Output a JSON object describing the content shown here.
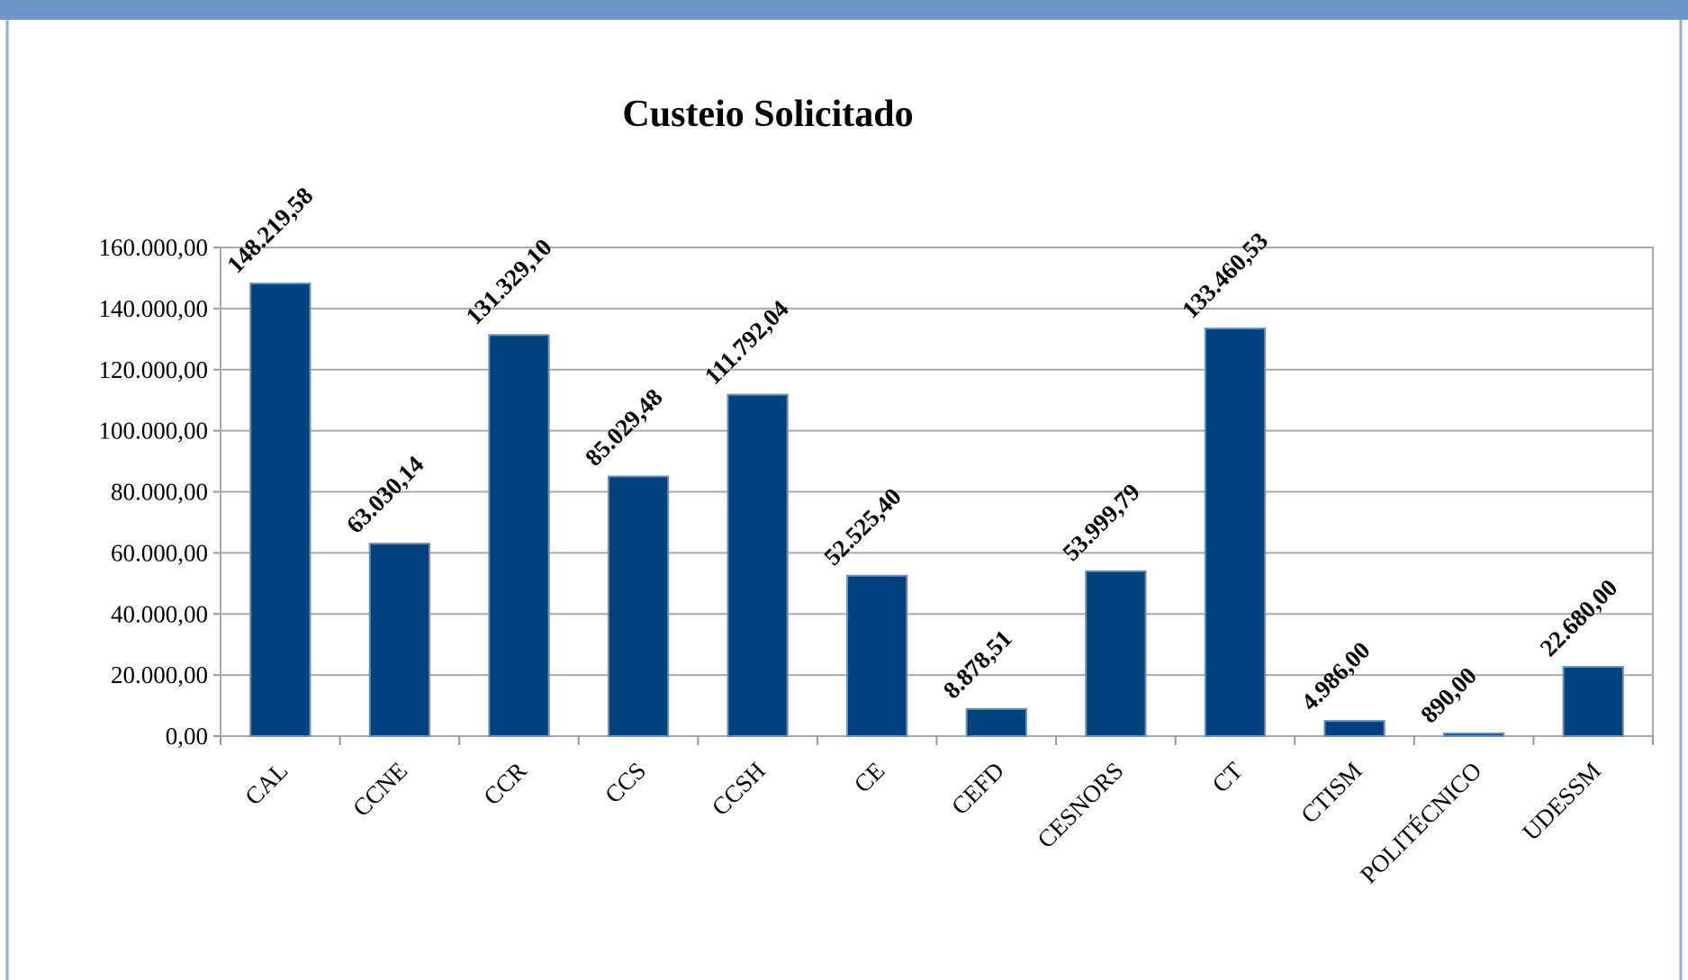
{
  "chart_data": {
    "type": "bar",
    "title": "Custeio Solicitado",
    "categories": [
      "CAL",
      "CCNE",
      "CCR",
      "CCS",
      "CCSH",
      "CE",
      "CEFD",
      "CESNORS",
      "CT",
      "CTISM",
      "POLITÉCNICO",
      "UDESSM"
    ],
    "values": [
      148219.58,
      63030.14,
      131329.1,
      85029.48,
      111792.04,
      52525.4,
      8878.51,
      53999.79,
      133460.53,
      4986.0,
      890.0,
      22680.0
    ],
    "value_labels": [
      "148.219,58",
      "63.030,14",
      "131.329,10",
      "85.029,48",
      "111.792,04",
      "52.525,40",
      "8.878,51",
      "53.999,79",
      "133.460,53",
      "4.986,00",
      "890,00",
      "22.680,00"
    ],
    "color": "#00427f",
    "ylim": [
      0,
      160000
    ],
    "yticks": [
      {
        "value": 0,
        "label": "0,00"
      },
      {
        "value": 20000,
        "label": "20.000,00"
      },
      {
        "value": 40000,
        "label": "40.000,00"
      },
      {
        "value": 60000,
        "label": "60.000,00"
      },
      {
        "value": 80000,
        "label": "80.000,00"
      },
      {
        "value": 100000,
        "label": "100.000,00"
      },
      {
        "value": 120000,
        "label": "120.000,00"
      },
      {
        "value": 140000,
        "label": "140.000,00"
      },
      {
        "value": 160000,
        "label": "160.000,00"
      }
    ],
    "grid": true
  }
}
